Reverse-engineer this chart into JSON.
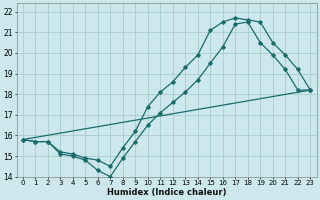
{
  "xlabel": "Humidex (Indice chaleur)",
  "bg_color": "#cce8ec",
  "grid_color": "#aacccc",
  "line_color": "#1a6b6b",
  "xlim": [
    -0.5,
    23.5
  ],
  "ylim": [
    14,
    22.4
  ],
  "xticks": [
    0,
    1,
    2,
    3,
    4,
    5,
    6,
    7,
    8,
    9,
    10,
    11,
    12,
    13,
    14,
    15,
    16,
    17,
    18,
    19,
    20,
    21,
    22,
    23
  ],
  "yticks": [
    14,
    15,
    16,
    17,
    18,
    19,
    20,
    21,
    22
  ],
  "line1_x": [
    0,
    1,
    2,
    3,
    4,
    5,
    6,
    7,
    8,
    9,
    10,
    11,
    12,
    13,
    14,
    15,
    16,
    17,
    18,
    19,
    20,
    21,
    22,
    23
  ],
  "line1_y": [
    15.8,
    15.7,
    15.7,
    15.1,
    15.0,
    14.8,
    14.3,
    14.0,
    14.9,
    15.7,
    16.5,
    17.1,
    17.6,
    18.1,
    18.7,
    19.5,
    20.3,
    21.4,
    21.5,
    20.5,
    19.9,
    19.2,
    18.2,
    18.2
  ],
  "line2_x": [
    0,
    1,
    2,
    3,
    4,
    5,
    6,
    7,
    8,
    9,
    10,
    11,
    12,
    13,
    14,
    15,
    16,
    17,
    18,
    19,
    20,
    21,
    22,
    23
  ],
  "line2_y": [
    15.8,
    15.7,
    15.7,
    15.2,
    15.1,
    14.9,
    14.8,
    14.5,
    15.4,
    16.2,
    17.4,
    18.1,
    18.6,
    19.3,
    19.9,
    21.1,
    21.5,
    21.7,
    21.6,
    21.5,
    20.5,
    19.9,
    19.2,
    18.2
  ],
  "line3_x": [
    0,
    23
  ],
  "line3_y": [
    15.8,
    18.2
  ]
}
